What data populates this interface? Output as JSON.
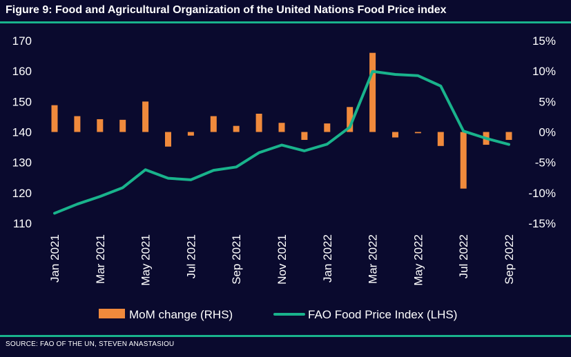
{
  "title": "Figure 9: Food and Agricultural Organization of the United Nations Food Price index",
  "source": "SOURCE: FAO OF THE UN, STEVEN ANASTASIOU",
  "colors": {
    "background": "#0a0a2e",
    "bars": "#f08a3c",
    "line": "#19b38c",
    "rules": "#19b38c",
    "text": "#ffffff"
  },
  "chart_data": {
    "type": "bar+line",
    "title": "Figure 9: Food and Agricultural Organization of the United Nations Food Price index",
    "x": [
      "Jan 2021",
      "Feb 2021",
      "Mar 2021",
      "Apr 2021",
      "May 2021",
      "Jun 2021",
      "Jul 2021",
      "Aug 2021",
      "Sep 2021",
      "Oct 2021",
      "Nov 2021",
      "Dec 2021",
      "Jan 2022",
      "Feb 2022",
      "Mar 2022",
      "Apr 2022",
      "May 2022",
      "Jun 2022",
      "Jul 2022",
      "Aug 2022",
      "Sep 2022"
    ],
    "x_tick_labels": [
      "Jan 2021",
      "Mar 2021",
      "May 2021",
      "Jul 2021",
      "Sep 2021",
      "Nov 2021",
      "Jan 2022",
      "Mar 2022",
      "May 2022",
      "Jul 2022",
      "Sep 2022"
    ],
    "left_axis": {
      "ylim": [
        110,
        170
      ],
      "ticks": [
        110,
        120,
        130,
        140,
        150,
        160,
        170
      ],
      "tick_labels": [
        "110",
        "120",
        "130",
        "140",
        "150",
        "160",
        "170"
      ]
    },
    "right_axis": {
      "ylim": [
        -15,
        15
      ],
      "ticks": [
        -15,
        -10,
        -5,
        0,
        5,
        10,
        15
      ],
      "tick_labels": [
        "-15%",
        "-10%",
        "-5%",
        "0%",
        "5%",
        "10%",
        "15%"
      ]
    },
    "series": [
      {
        "name": "MoM change (RHS)",
        "type": "bar",
        "axis": "right",
        "values": [
          4.4,
          2.6,
          2.1,
          2.0,
          5.0,
          -2.4,
          -0.6,
          2.6,
          1.0,
          3.0,
          1.5,
          -1.3,
          1.4,
          4.1,
          13.0,
          -0.9,
          -0.2,
          -2.3,
          -9.3,
          -2.1,
          -1.3
        ]
      },
      {
        "name": "FAO Food Price Index (LHS)",
        "type": "line",
        "axis": "left",
        "values": [
          113.3,
          116.3,
          118.8,
          121.7,
          127.6,
          124.8,
          124.3,
          127.4,
          128.5,
          133.2,
          135.7,
          133.8,
          136.0,
          141.6,
          159.9,
          158.9,
          158.5,
          155.1,
          140.3,
          137.9,
          135.9
        ]
      }
    ],
    "legend_position": "bottom"
  }
}
